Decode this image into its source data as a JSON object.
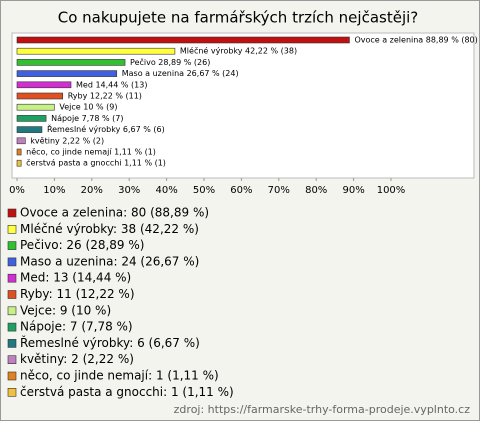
{
  "chart_data": {
    "type": "bar",
    "title": "Co nakupujete na farmářských trzích nejčastěji?",
    "values": [
      88.89,
      42.22,
      28.89,
      26.67,
      14.44,
      12.22,
      10,
      7.78,
      6.67,
      2.22,
      1.11,
      1.11
    ],
    "counts": [
      80,
      38,
      26,
      24,
      13,
      11,
      9,
      7,
      6,
      2,
      1,
      1
    ],
    "value_labels": [
      "Ovoce a zelenina 88,89 % (80)",
      "Mléčné výrobky 42,22 % (38)",
      "Pečivo 28,89 % (26)",
      "Maso a uzenina 26,67 % (24)",
      "Med 14,44 % (13)",
      "Ryby 12,22 % (11)",
      "Vejce 10 % (9)",
      "Nápoje 7,78 % (7)",
      "Řemeslné výrobky 6,67 % (6)",
      "květiny 2,22 % (2)",
      "něco, co jinde nemají 1,11 % (1)",
      "čerstvá pasta a gnocchi 1,11 % (1)"
    ],
    "legend_labels": [
      "Ovoce a zelenina: 80 (88,89 %)",
      "Mléčné výrobky: 38 (42,22 %)",
      "Pečivo: 26 (28,89 %)",
      "Maso a uzenina: 24 (26,67 %)",
      "Med: 13 (14,44 %)",
      "Ryby: 11 (12,22 %)",
      "Vejce: 9 (10 %)",
      "Nápoje: 7 (7,78 %)",
      "Řemeslné výrobky: 6 (6,67 %)",
      "květiny: 2 (2,22 %)",
      "něco, co jinde nemají: 1 (1,11 %)",
      "čerstvá pasta a gnocchi: 1 (1,11 %)"
    ],
    "colors": [
      "#c01010",
      "#ffff40",
      "#30c030",
      "#4060e0",
      "#d030d0",
      "#e05020",
      "#c8f088",
      "#20a060",
      "#207880",
      "#c080c0",
      "#e08020",
      "#f0c040"
    ],
    "xlim": [
      0,
      100
    ],
    "xticks": [
      {
        "value": 0,
        "label": "0%"
      },
      {
        "value": 10,
        "label": "10%"
      },
      {
        "value": 20,
        "label": "20%"
      },
      {
        "value": 30,
        "label": "30%"
      },
      {
        "value": 40,
        "label": "40%"
      },
      {
        "value": 50,
        "label": "50%"
      },
      {
        "value": 60,
        "label": "60%"
      },
      {
        "value": 70,
        "label": "70%"
      },
      {
        "value": 80,
        "label": "80%"
      },
      {
        "value": 90,
        "label": "90%"
      },
      {
        "value": 100,
        "label": "100%"
      }
    ],
    "source": "zdroj: https://farmarske-trhy-forma-prodeje.vyplnto.cz"
  }
}
